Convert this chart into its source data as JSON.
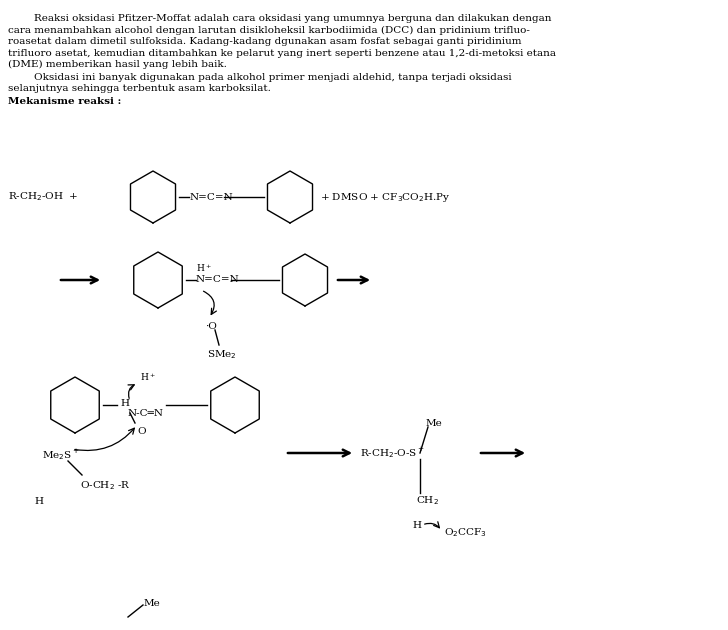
{
  "bg_color": "#ffffff",
  "text_color": "#000000",
  "para1_lines": [
    "        Reaksi oksidasi Pfitzer-Moffat adalah cara oksidasi yang umumnya berguna dan dilakukan dengan",
    "cara menambahkan alcohol dengan larutan disikloheksil karbodiimida (DCC) dan pridinium trifluo-",
    "roasetat dalam dimetil sulfoksida. Kadang-kadang dgunakan asam fosfat sebagai ganti piridinium",
    "trifluoro asetat, kemudian ditambahkan ke pelarut yang inert seperti benzene atau 1,2-di-metoksi etana",
    "(DME) memberikan hasil yang lebih baik."
  ],
  "para2_lines": [
    "        Oksidasi ini banyak digunakan pada alkohol primer menjadi aldehid, tanpa terjadi oksidasi",
    "selanjutnya sehingga terbentuk asam karboksilat."
  ],
  "bold_label": "Mekanisme reaksi :"
}
